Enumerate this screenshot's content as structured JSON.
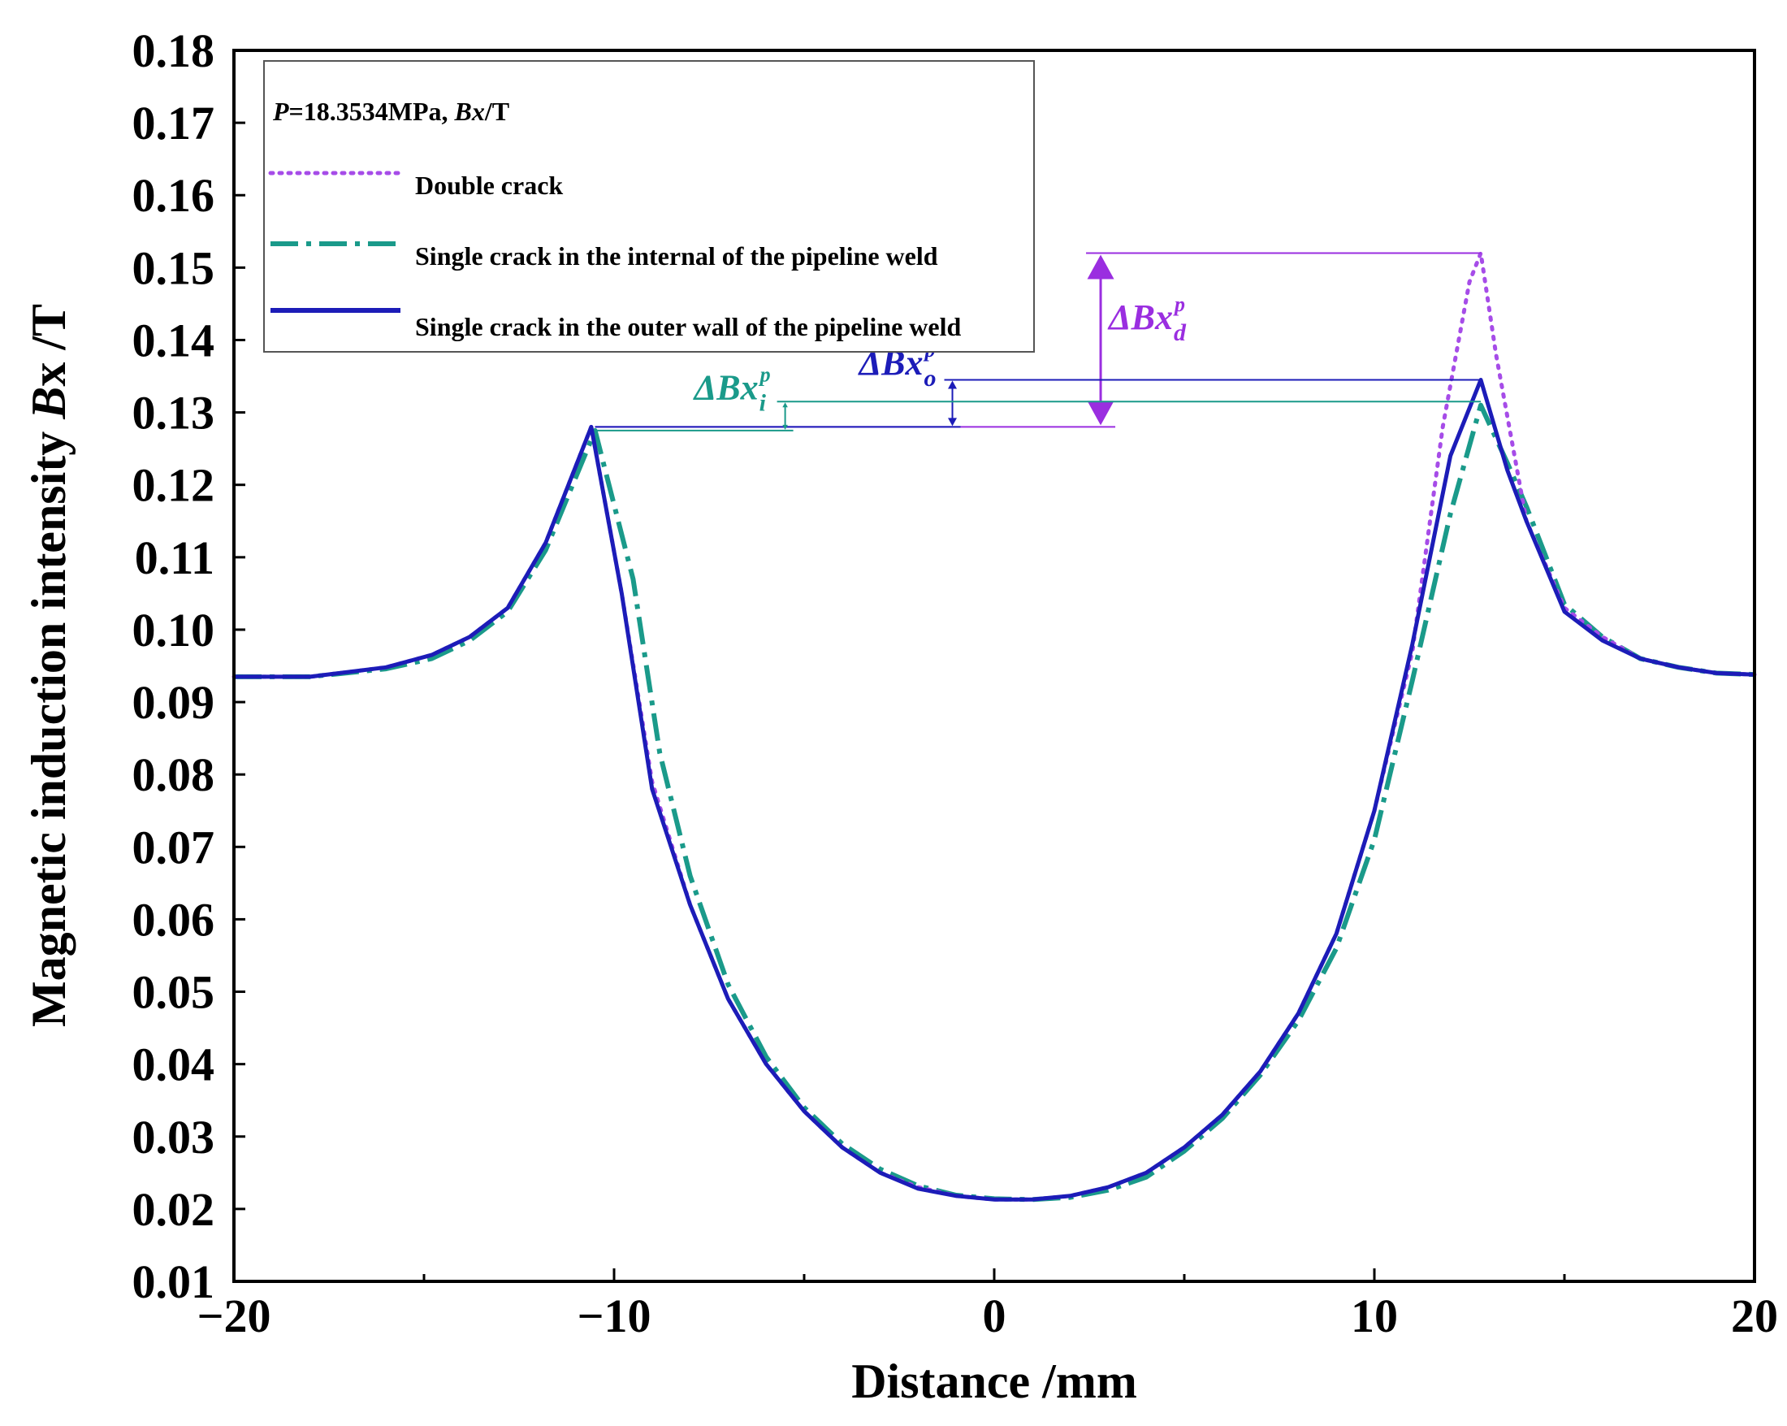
{
  "chart_data": {
    "type": "line",
    "title": "",
    "xlabel": "Distance /mm",
    "ylabel_prefix": "Magnetic induction intensity ",
    "ylabel_var": "B",
    "ylabel_suffix": "x /T",
    "xlim": [
      -20,
      20
    ],
    "ylim": [
      0.01,
      0.18
    ],
    "xticks": [
      -20,
      -10,
      0,
      10,
      20
    ],
    "xtick_labels": [
      "−20",
      "−10",
      "0",
      "10",
      "20"
    ],
    "yticks": [
      0.01,
      0.02,
      0.03,
      0.04,
      0.05,
      0.06,
      0.07,
      0.08,
      0.09,
      0.1,
      0.11,
      0.12,
      0.13,
      0.14,
      0.15,
      0.16,
      0.17,
      0.18
    ],
    "ytick_labels": [
      "0.01",
      "0.02",
      "0.03",
      "0.04",
      "0.05",
      "0.06",
      "0.07",
      "0.08",
      "0.09",
      "0.10",
      "0.11",
      "0.12",
      "0.13",
      "0.14",
      "0.15",
      "0.16",
      "0.17",
      "0.18"
    ],
    "legend": {
      "header_p": "P",
      "header_mid": "=18.3534MPa, ",
      "header_bx": "Bx",
      "header_unit": "/T",
      "position": "top-left"
    },
    "series": [
      {
        "name": "Double crack",
        "color": "#a64ce8",
        "style": "dotted",
        "x": [
          -20,
          -18,
          -16,
          -14.8,
          -13.8,
          -12.8,
          -11.8,
          -10.6,
          -9.8,
          -9,
          -8,
          -7,
          -6,
          -5,
          -4,
          -3,
          -2,
          -1,
          0,
          1,
          2,
          3,
          4,
          5,
          6,
          7,
          8,
          9,
          10,
          11,
          11.8,
          12.5,
          12.8,
          13.2,
          14,
          15,
          16,
          17,
          18,
          19,
          20
        ],
        "values": [
          0.0935,
          0.0935,
          0.0948,
          0.0965,
          0.099,
          0.103,
          0.112,
          0.128,
          0.105,
          0.079,
          0.062,
          0.049,
          0.04,
          0.0335,
          0.0285,
          0.025,
          0.023,
          0.0218,
          0.0213,
          0.0213,
          0.0218,
          0.023,
          0.025,
          0.0285,
          0.033,
          0.039,
          0.047,
          0.058,
          0.075,
          0.097,
          0.128,
          0.148,
          0.152,
          0.138,
          0.115,
          0.103,
          0.099,
          0.096,
          0.0948,
          0.094,
          0.0938
        ]
      },
      {
        "name": "Single crack in the internal of the pipeline weld",
        "color": "#1a9a8a",
        "style": "dashdot",
        "x": [
          -20,
          -18,
          -16,
          -14.8,
          -13.8,
          -12.8,
          -11.8,
          -10.5,
          -9.5,
          -8.8,
          -8,
          -7,
          -6,
          -5,
          -4,
          -3,
          -2,
          -1,
          0,
          1,
          2,
          3,
          4,
          5,
          6,
          7,
          8,
          9,
          10,
          11,
          12,
          12.8,
          13.5,
          14,
          15,
          16,
          17,
          18,
          19,
          20
        ],
        "values": [
          0.0935,
          0.0935,
          0.0946,
          0.096,
          0.0985,
          0.1025,
          0.111,
          0.1275,
          0.107,
          0.083,
          0.066,
          0.051,
          0.041,
          0.034,
          0.029,
          0.0255,
          0.0232,
          0.0219,
          0.0214,
          0.0213,
          0.0216,
          0.0226,
          0.0244,
          0.028,
          0.0325,
          0.0385,
          0.046,
          0.056,
          0.071,
          0.093,
          0.116,
          0.131,
          0.123,
          0.117,
          0.1035,
          0.099,
          0.096,
          0.0948,
          0.094,
          0.0938
        ]
      },
      {
        "name": "Single crack in the outer wall of the pipeline weld",
        "color": "#1c1cb8",
        "style": "solid",
        "x": [
          -20,
          -18,
          -16,
          -14.8,
          -13.8,
          -12.8,
          -11.8,
          -10.6,
          -9.8,
          -9,
          -8,
          -7,
          -6,
          -5,
          -4,
          -3,
          -2,
          -1,
          0,
          1,
          2,
          3,
          4,
          5,
          6,
          7,
          8,
          9,
          10,
          11,
          12,
          12.8,
          13.5,
          14,
          15,
          16,
          17,
          18,
          19,
          20
        ],
        "values": [
          0.0935,
          0.0935,
          0.0948,
          0.0965,
          0.099,
          0.103,
          0.112,
          0.128,
          0.105,
          0.078,
          0.062,
          0.049,
          0.04,
          0.0335,
          0.0285,
          0.025,
          0.0228,
          0.0218,
          0.0213,
          0.0213,
          0.0218,
          0.023,
          0.025,
          0.0285,
          0.033,
          0.039,
          0.047,
          0.058,
          0.075,
          0.098,
          0.124,
          0.1345,
          0.122,
          0.115,
          0.1025,
          0.0985,
          0.096,
          0.0948,
          0.094,
          0.0938
        ]
      }
    ],
    "annotations": [
      {
        "id": "d",
        "label_main": "ΔBx",
        "sup": "p",
        "sub": "d",
        "color": "#9a2ee0",
        "x_mm": 2.8,
        "y_low": 0.128,
        "y_high": 0.152,
        "x_line_start": -10.5,
        "x_line_end": 12.8
      },
      {
        "id": "o",
        "label_main": "ΔBx",
        "sup": "p",
        "sub": "o",
        "color": "#1c1cb8",
        "x_mm": -1.1,
        "y_low": 0.128,
        "y_high": 0.1345,
        "x_line_start": -10.5,
        "x_line_end": 12.8
      },
      {
        "id": "i",
        "label_main": "ΔBx",
        "sup": "p",
        "sub": "i",
        "color": "#1a9a8a",
        "x_mm": -5.5,
        "y_low": 0.1275,
        "y_high": 0.1315,
        "x_line_start": -10.5,
        "x_line_end": 12.8
      }
    ]
  }
}
